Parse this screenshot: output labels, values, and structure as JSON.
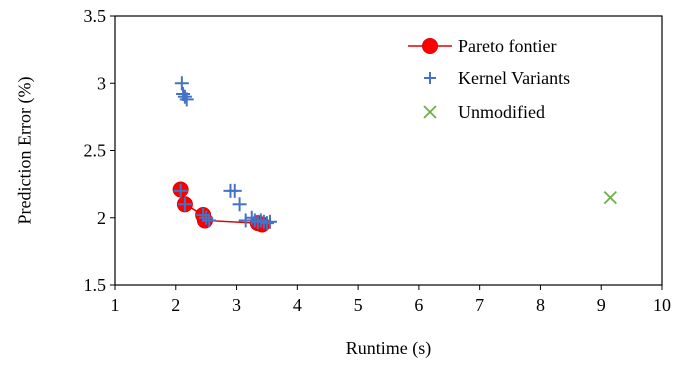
{
  "chart_data": {
    "type": "scatter",
    "xlabel": "Runtime (s)",
    "ylabel": "Prediction Error (%)",
    "xlim": [
      1,
      10
    ],
    "ylim": [
      1.5,
      3.5
    ],
    "x_ticks": [
      "1",
      "2",
      "3",
      "4",
      "5",
      "6",
      "7",
      "8",
      "9",
      "10"
    ],
    "y_ticks": [
      "1.5",
      "2",
      "2.5",
      "3",
      "3.5"
    ],
    "legend_position": "top-right",
    "series": [
      {
        "name": "Pareto fontier",
        "kind": "line-marker",
        "color": "#ff0000",
        "line_color": "#e00000",
        "points": [
          {
            "x": 2.08,
            "y": 2.21
          },
          {
            "x": 2.15,
            "y": 2.1
          },
          {
            "x": 2.45,
            "y": 2.02
          },
          {
            "x": 2.48,
            "y": 1.98
          },
          {
            "x": 3.35,
            "y": 1.96
          },
          {
            "x": 3.42,
            "y": 1.95
          }
        ]
      },
      {
        "name": "Kernel Variants",
        "kind": "plus",
        "color": "#4472c4",
        "points": [
          {
            "x": 2.1,
            "y": 3.0
          },
          {
            "x": 2.12,
            "y": 2.92
          },
          {
            "x": 2.15,
            "y": 2.9
          },
          {
            "x": 2.18,
            "y": 2.88
          },
          {
            "x": 2.08,
            "y": 2.2
          },
          {
            "x": 2.15,
            "y": 2.1
          },
          {
            "x": 2.45,
            "y": 2.02
          },
          {
            "x": 2.5,
            "y": 2.0
          },
          {
            "x": 2.55,
            "y": 1.98
          },
          {
            "x": 2.9,
            "y": 2.2
          },
          {
            "x": 2.97,
            "y": 2.2
          },
          {
            "x": 3.05,
            "y": 2.1
          },
          {
            "x": 3.15,
            "y": 1.98
          },
          {
            "x": 3.25,
            "y": 2.0
          },
          {
            "x": 3.3,
            "y": 1.98
          },
          {
            "x": 3.35,
            "y": 1.97
          },
          {
            "x": 3.4,
            "y": 1.98
          },
          {
            "x": 3.45,
            "y": 1.97
          },
          {
            "x": 3.5,
            "y": 1.96
          },
          {
            "x": 3.55,
            "y": 1.97
          }
        ]
      },
      {
        "name": "Unmodified",
        "kind": "x",
        "color": "#70ad47",
        "points": [
          {
            "x": 9.15,
            "y": 2.15
          }
        ]
      }
    ]
  }
}
